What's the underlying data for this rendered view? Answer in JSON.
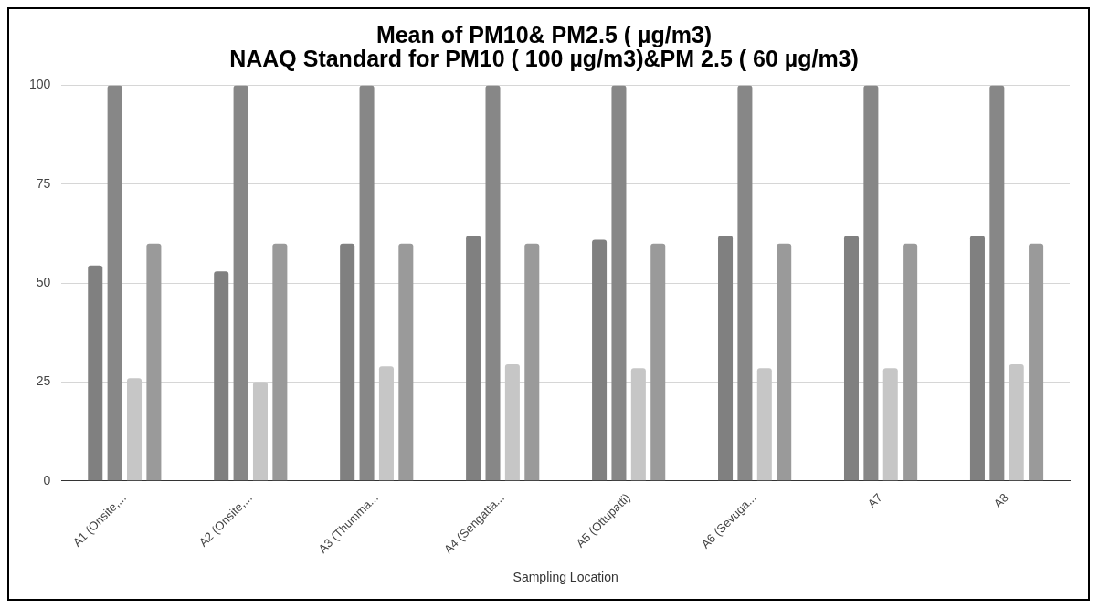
{
  "chart_data": {
    "type": "bar",
    "title": "Mean of PM10& PM2.5 ( µg/m3)\nNAAQ Standard for PM10 ( 100 µg/m3)&PM 2.5 ( 60 µg/m3)",
    "xlabel": "Sampling Location",
    "categories": [
      "A1 (Onsite,...",
      "A2 (Onsite,...",
      "A3 (Thumma...",
      "A4 (Sengatta...",
      "A5 (Ottupatti)",
      "A6 (Sevuga...",
      "A7",
      "A8"
    ],
    "series": [
      {
        "color": "#808080",
        "values": [
          54.5,
          53,
          60,
          62,
          61,
          62,
          62,
          62
        ]
      },
      {
        "color": "#878787",
        "values": [
          100,
          100,
          100,
          100,
          100,
          100,
          100,
          100
        ]
      },
      {
        "color": "#c6c6c6",
        "values": [
          26,
          25,
          29,
          29.5,
          28.5,
          28.5,
          28.5,
          29.5
        ]
      },
      {
        "color": "#9a9a9a",
        "values": [
          60,
          60,
          60,
          60,
          60,
          60,
          60,
          60
        ]
      }
    ],
    "ylim": [
      0,
      100
    ],
    "yticks": [
      0,
      25,
      50,
      75,
      100
    ],
    "grid": "y",
    "legend": false
  }
}
